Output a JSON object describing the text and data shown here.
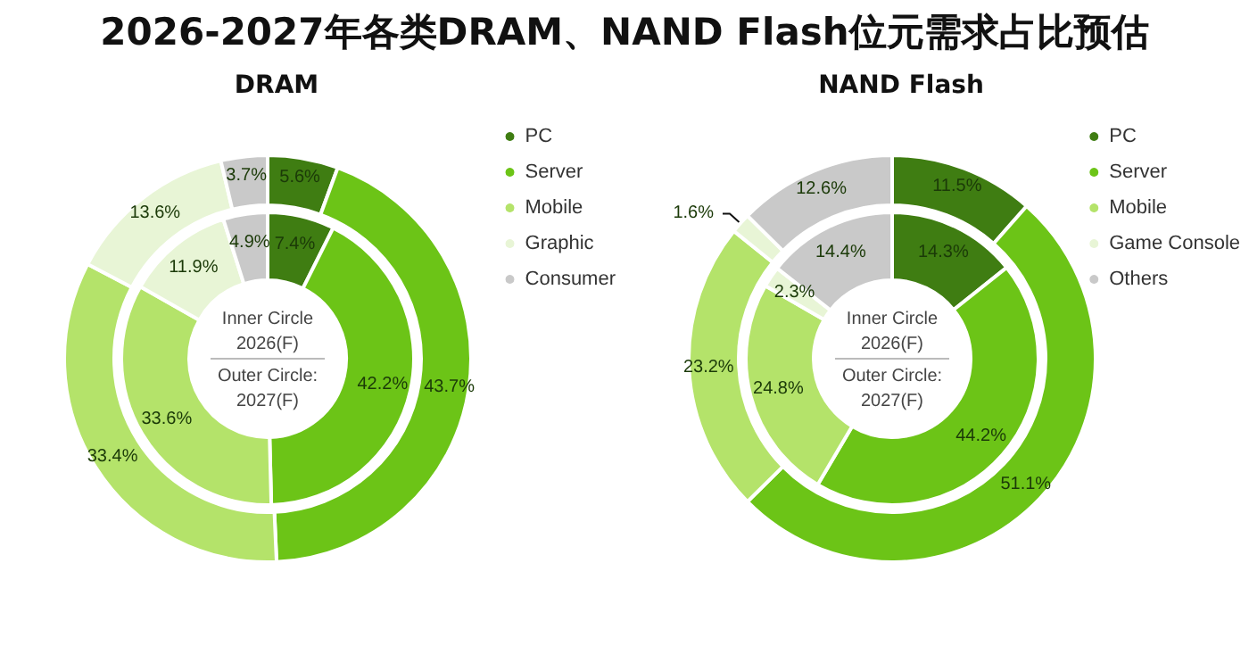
{
  "chart_data": [
    {
      "type": "donut",
      "title": "2026-2027年各类DRAM、NAND Flash位元需求占比预估",
      "subtitle": "DRAM",
      "categories": [
        "PC",
        "Server",
        "Mobile",
        "Graphic",
        "Consumer"
      ],
      "colors": [
        "#3f7d12",
        "#6cc417",
        "#b4e36a",
        "#e8f5d6",
        "#c9c9c9"
      ],
      "legend": "top right",
      "annotations": [
        "Inner Circle\n2026(F)",
        "Outer Circle:\n2027(F)"
      ],
      "series": [
        {
          "values": [
            7.4,
            42.2,
            33.6,
            11.9,
            4.9
          ],
          "value_labels": [
            "7.4%",
            "42.2%",
            "33.6%",
            "11.9%",
            "4.9%"
          ]
        },
        {
          "values": [
            5.6,
            43.7,
            33.4,
            13.6,
            3.7
          ],
          "value_labels": [
            "5.6%",
            "43.7%",
            "33.4%",
            "13.6%",
            "3.7%"
          ]
        }
      ]
    },
    {
      "type": "donut",
      "subtitle": "NAND Flash",
      "categories": [
        "PC",
        "Server",
        "Mobile",
        "Game Console",
        "Others"
      ],
      "colors": [
        "#3f7d12",
        "#6cc417",
        "#b4e36a",
        "#e8f5d6",
        "#c9c9c9"
      ],
      "legend": "top right",
      "annotations": [
        "Inner Circle\n2026(F)",
        "Outer Circle:\n2027(F)"
      ],
      "series": [
        {
          "values": [
            14.3,
            44.2,
            24.8,
            2.3,
            14.4
          ],
          "value_labels": [
            "14.3%",
            "44.2%",
            "24.8%",
            "2.3%",
            "14.4%"
          ]
        },
        {
          "values": [
            11.5,
            51.1,
            23.2,
            1.6,
            12.6
          ],
          "value_labels": [
            "11.5%",
            "51.1%",
            "23.2%",
            "1.6%",
            "12.6%"
          ]
        }
      ]
    }
  ]
}
